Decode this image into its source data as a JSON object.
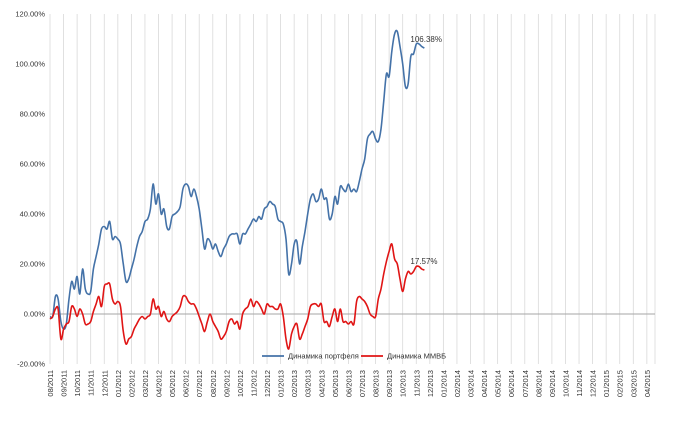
{
  "chart_data": {
    "type": "line",
    "title": "",
    "xlabel": "",
    "ylabel": "",
    "ylim": [
      -20,
      120
    ],
    "yticks": [
      -20,
      0,
      20,
      40,
      60,
      80,
      100,
      120
    ],
    "ytick_labels": [
      "-20.00%",
      "0.00%",
      "20.00%",
      "40.00%",
      "60.00%",
      "80.00%",
      "100.00%",
      "120.00%"
    ],
    "grid": "vertical",
    "legend_position": "bottom",
    "x_tick_labels": [
      "08/2011",
      "09/2011",
      "10/2011",
      "11/2011",
      "12/2011",
      "01/2012",
      "02/2012",
      "03/2012",
      "04/2012",
      "05/2012",
      "06/2012",
      "07/2012",
      "08/2012",
      "09/2012",
      "10/2012",
      "11/2012",
      "12/2012",
      "01/2013",
      "02/2013",
      "03/2013",
      "04/2013",
      "05/2013",
      "06/2013",
      "07/2013",
      "08/2013",
      "09/2013",
      "10/2013",
      "11/2013",
      "12/2013",
      "01/2014",
      "02/2014",
      "03/2014",
      "04/2014",
      "05/2014",
      "06/2014",
      "07/2014",
      "08/2014",
      "09/2014",
      "10/2014",
      "11/2014",
      "12/2014",
      "01/2015",
      "02/2015",
      "03/2015",
      "04/2015"
    ],
    "series": [
      {
        "name": "Динамика портфеля",
        "color": "#4472a8",
        "end_label": "106.38%",
        "points": [
          [
            0,
            -1
          ],
          [
            0.2,
            -1
          ],
          [
            0.4,
            7
          ],
          [
            0.6,
            6
          ],
          [
            0.8,
            -3
          ],
          [
            1,
            -6
          ],
          [
            1.2,
            -4
          ],
          [
            1.4,
            6
          ],
          [
            1.6,
            13
          ],
          [
            1.8,
            10
          ],
          [
            2,
            15
          ],
          [
            2.2,
            8
          ],
          [
            2.4,
            18
          ],
          [
            2.6,
            10
          ],
          [
            2.8,
            8
          ],
          [
            3,
            9
          ],
          [
            3.2,
            18
          ],
          [
            3.4,
            23
          ],
          [
            3.6,
            28
          ],
          [
            3.8,
            34
          ],
          [
            4,
            35
          ],
          [
            4.2,
            34
          ],
          [
            4.4,
            37
          ],
          [
            4.6,
            30
          ],
          [
            4.8,
            31
          ],
          [
            5,
            30
          ],
          [
            5.2,
            28
          ],
          [
            5.4,
            20
          ],
          [
            5.6,
            13
          ],
          [
            5.8,
            14
          ],
          [
            6,
            18
          ],
          [
            6.2,
            22
          ],
          [
            6.4,
            27
          ],
          [
            6.6,
            31
          ],
          [
            6.8,
            33
          ],
          [
            7,
            37
          ],
          [
            7.2,
            38
          ],
          [
            7.4,
            42
          ],
          [
            7.6,
            52
          ],
          [
            7.8,
            44
          ],
          [
            8,
            48
          ],
          [
            8.2,
            40
          ],
          [
            8.4,
            42
          ],
          [
            8.6,
            35
          ],
          [
            8.8,
            34
          ],
          [
            9,
            39
          ],
          [
            9.2,
            40
          ],
          [
            9.4,
            41
          ],
          [
            9.6,
            43
          ],
          [
            9.8,
            50
          ],
          [
            10,
            52
          ],
          [
            10.2,
            51
          ],
          [
            10.4,
            47
          ],
          [
            10.6,
            50
          ],
          [
            10.8,
            47
          ],
          [
            11,
            42
          ],
          [
            11.2,
            34
          ],
          [
            11.4,
            26
          ],
          [
            11.6,
            30
          ],
          [
            11.8,
            29
          ],
          [
            12,
            26
          ],
          [
            12.2,
            28
          ],
          [
            12.4,
            25
          ],
          [
            12.6,
            23
          ],
          [
            12.8,
            26
          ],
          [
            13,
            28
          ],
          [
            13.2,
            31
          ],
          [
            13.4,
            32
          ],
          [
            13.6,
            32
          ],
          [
            13.8,
            32
          ],
          [
            14,
            28
          ],
          [
            14.2,
            32
          ],
          [
            14.4,
            32
          ],
          [
            14.6,
            34
          ],
          [
            14.8,
            36
          ],
          [
            15,
            38
          ],
          [
            15.2,
            37
          ],
          [
            15.4,
            39
          ],
          [
            15.6,
            38
          ],
          [
            15.8,
            42
          ],
          [
            16,
            43
          ],
          [
            16.2,
            45
          ],
          [
            16.4,
            44
          ],
          [
            16.6,
            43
          ],
          [
            16.8,
            38
          ],
          [
            17,
            37
          ],
          [
            17.2,
            36
          ],
          [
            17.4,
            30
          ],
          [
            17.6,
            16
          ],
          [
            17.8,
            20
          ],
          [
            18,
            28
          ],
          [
            18.2,
            29
          ],
          [
            18.4,
            20
          ],
          [
            18.6,
            27
          ],
          [
            18.8,
            33
          ],
          [
            19,
            40
          ],
          [
            19.2,
            46
          ],
          [
            19.4,
            48
          ],
          [
            19.6,
            45
          ],
          [
            19.8,
            46
          ],
          [
            20,
            50
          ],
          [
            20.2,
            46
          ],
          [
            20.4,
            46
          ],
          [
            20.6,
            38
          ],
          [
            20.8,
            40
          ],
          [
            21,
            47
          ],
          [
            21.2,
            44
          ],
          [
            21.4,
            51
          ],
          [
            21.6,
            50
          ],
          [
            21.8,
            49
          ],
          [
            22,
            52
          ],
          [
            22.2,
            49
          ],
          [
            22.4,
            50
          ],
          [
            22.6,
            49
          ],
          [
            22.8,
            53
          ],
          [
            23,
            58
          ],
          [
            23.2,
            62
          ],
          [
            23.4,
            70
          ],
          [
            23.6,
            72
          ],
          [
            23.8,
            73
          ],
          [
            24,
            70
          ],
          [
            24.2,
            69
          ],
          [
            24.4,
            74
          ],
          [
            24.6,
            85
          ],
          [
            24.8,
            96
          ],
          [
            25,
            95
          ],
          [
            25.2,
            105
          ],
          [
            25.4,
            112
          ],
          [
            25.6,
            113
          ],
          [
            25.8,
            107
          ],
          [
            26,
            100
          ],
          [
            26.2,
            91
          ],
          [
            26.4,
            92
          ],
          [
            26.6,
            103
          ],
          [
            26.8,
            104
          ],
          [
            27,
            108
          ],
          [
            27.2,
            108
          ],
          [
            27.4,
            107
          ],
          [
            27.6,
            106.38
          ]
        ]
      },
      {
        "name": "Динамика ММВБ",
        "color": "#e01515",
        "end_label": "17.57%",
        "points": [
          [
            0,
            -2
          ],
          [
            0.2,
            -1
          ],
          [
            0.4,
            2
          ],
          [
            0.6,
            2
          ],
          [
            0.8,
            -10
          ],
          [
            1,
            -6
          ],
          [
            1.2,
            -4
          ],
          [
            1.4,
            -3
          ],
          [
            1.6,
            3
          ],
          [
            1.8,
            2
          ],
          [
            2,
            -1
          ],
          [
            2.2,
            2
          ],
          [
            2.4,
            0
          ],
          [
            2.6,
            -4
          ],
          [
            2.8,
            -4
          ],
          [
            3,
            -3
          ],
          [
            3.2,
            1
          ],
          [
            3.4,
            4
          ],
          [
            3.6,
            7
          ],
          [
            3.8,
            3
          ],
          [
            4,
            11
          ],
          [
            4.2,
            12
          ],
          [
            4.4,
            12
          ],
          [
            4.6,
            6
          ],
          [
            4.8,
            4
          ],
          [
            5,
            5
          ],
          [
            5.2,
            3
          ],
          [
            5.4,
            -7
          ],
          [
            5.6,
            -12
          ],
          [
            5.8,
            -10
          ],
          [
            6,
            -9
          ],
          [
            6.2,
            -6
          ],
          [
            6.4,
            -4
          ],
          [
            6.6,
            -2
          ],
          [
            6.8,
            -1
          ],
          [
            7,
            -2
          ],
          [
            7.2,
            -1
          ],
          [
            7.4,
            0
          ],
          [
            7.6,
            6
          ],
          [
            7.8,
            2
          ],
          [
            8,
            3
          ],
          [
            8.2,
            -1
          ],
          [
            8.4,
            1
          ],
          [
            8.6,
            -2
          ],
          [
            8.8,
            -3
          ],
          [
            9,
            -1
          ],
          [
            9.2,
            0
          ],
          [
            9.4,
            1
          ],
          [
            9.6,
            3
          ],
          [
            9.8,
            7
          ],
          [
            10,
            7
          ],
          [
            10.2,
            5
          ],
          [
            10.4,
            4
          ],
          [
            10.6,
            4
          ],
          [
            10.8,
            2
          ],
          [
            11,
            -1
          ],
          [
            11.2,
            -4
          ],
          [
            11.4,
            -7
          ],
          [
            11.6,
            -3
          ],
          [
            11.8,
            0
          ],
          [
            12,
            -3
          ],
          [
            12.2,
            -5
          ],
          [
            12.4,
            -7
          ],
          [
            12.6,
            -10
          ],
          [
            12.8,
            -9
          ],
          [
            13,
            -7
          ],
          [
            13.2,
            -3
          ],
          [
            13.4,
            -2
          ],
          [
            13.6,
            -4
          ],
          [
            13.8,
            -3
          ],
          [
            14,
            -6
          ],
          [
            14.2,
            0
          ],
          [
            14.4,
            2
          ],
          [
            14.6,
            3
          ],
          [
            14.8,
            6
          ],
          [
            15,
            3
          ],
          [
            15.2,
            5
          ],
          [
            15.4,
            4
          ],
          [
            15.6,
            2
          ],
          [
            15.8,
            0
          ],
          [
            16,
            4
          ],
          [
            16.2,
            3
          ],
          [
            16.4,
            3
          ],
          [
            16.6,
            2
          ],
          [
            16.8,
            2
          ],
          [
            17,
            4
          ],
          [
            17.2,
            -1
          ],
          [
            17.4,
            -10
          ],
          [
            17.6,
            -14
          ],
          [
            17.8,
            -8
          ],
          [
            18,
            -5
          ],
          [
            18.2,
            -4
          ],
          [
            18.4,
            -10
          ],
          [
            18.6,
            -8
          ],
          [
            18.8,
            -5
          ],
          [
            19,
            -2
          ],
          [
            19.2,
            3
          ],
          [
            19.4,
            4
          ],
          [
            19.6,
            4
          ],
          [
            19.8,
            3
          ],
          [
            20,
            4
          ],
          [
            20.2,
            -3
          ],
          [
            20.4,
            -3
          ],
          [
            20.6,
            -5
          ],
          [
            20.8,
            -1
          ],
          [
            21,
            2
          ],
          [
            21.2,
            -3
          ],
          [
            21.4,
            2
          ],
          [
            21.6,
            -3
          ],
          [
            21.8,
            -3
          ],
          [
            22,
            -4
          ],
          [
            22.2,
            -3
          ],
          [
            22.4,
            -4
          ],
          [
            22.6,
            5
          ],
          [
            22.8,
            7
          ],
          [
            23,
            6
          ],
          [
            23.2,
            5
          ],
          [
            23.4,
            3
          ],
          [
            23.6,
            0
          ],
          [
            23.8,
            -1
          ],
          [
            24,
            -1
          ],
          [
            24.2,
            6
          ],
          [
            24.4,
            10
          ],
          [
            24.6,
            16
          ],
          [
            24.8,
            21
          ],
          [
            25,
            25
          ],
          [
            25.2,
            28
          ],
          [
            25.4,
            22
          ],
          [
            25.6,
            20
          ],
          [
            25.8,
            14
          ],
          [
            26,
            9
          ],
          [
            26.2,
            14
          ],
          [
            26.4,
            17
          ],
          [
            26.6,
            16
          ],
          [
            26.8,
            17
          ],
          [
            27,
            19
          ],
          [
            27.2,
            19
          ],
          [
            27.4,
            18
          ],
          [
            27.6,
            17.57
          ]
        ]
      }
    ]
  }
}
